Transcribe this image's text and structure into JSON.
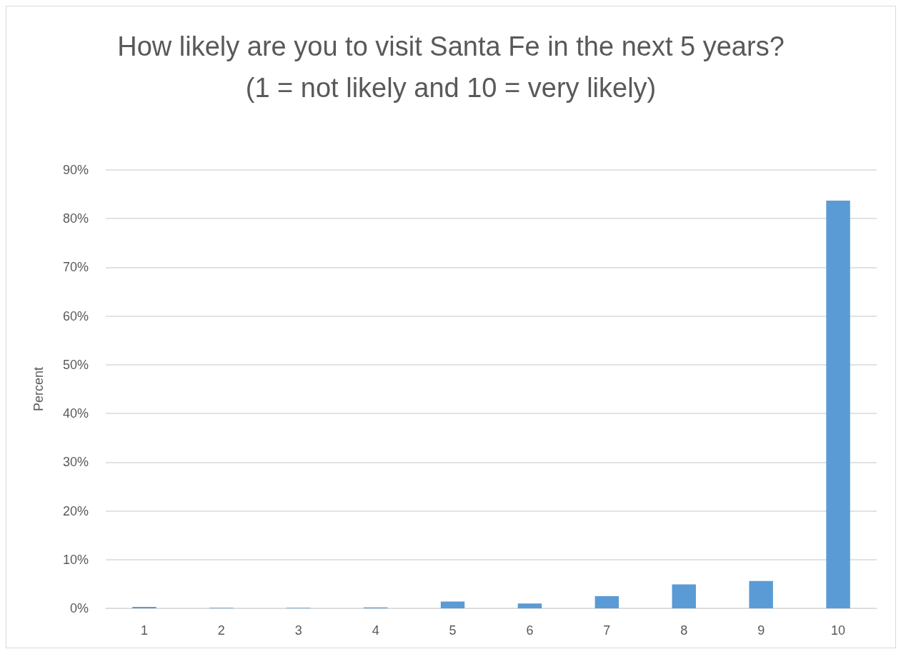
{
  "chart_data": {
    "type": "bar",
    "title": "How likely are you to visit Santa Fe in the next 5 years?\n(1 = not likely and 10 = very likely)",
    "ylabel": "Percent",
    "categories": [
      "1",
      "2",
      "3",
      "4",
      "5",
      "6",
      "7",
      "8",
      "9",
      "10"
    ],
    "values": [
      0.3,
      0.1,
      0.1,
      0.2,
      1.4,
      1.0,
      2.5,
      4.9,
      5.6,
      83.7
    ],
    "color": "#5b9bd5",
    "ylim": [
      0,
      90
    ],
    "yticks": [
      {
        "value": 0,
        "label": "0%"
      },
      {
        "value": 10,
        "label": "10%"
      },
      {
        "value": 20,
        "label": "20%"
      },
      {
        "value": 30,
        "label": "30%"
      },
      {
        "value": 40,
        "label": "40%"
      },
      {
        "value": 50,
        "label": "50%"
      },
      {
        "value": 60,
        "label": "60%"
      },
      {
        "value": 70,
        "label": "70%"
      },
      {
        "value": 80,
        "label": "80%"
      },
      {
        "value": 90,
        "label": "90%"
      }
    ],
    "grid": "y"
  }
}
